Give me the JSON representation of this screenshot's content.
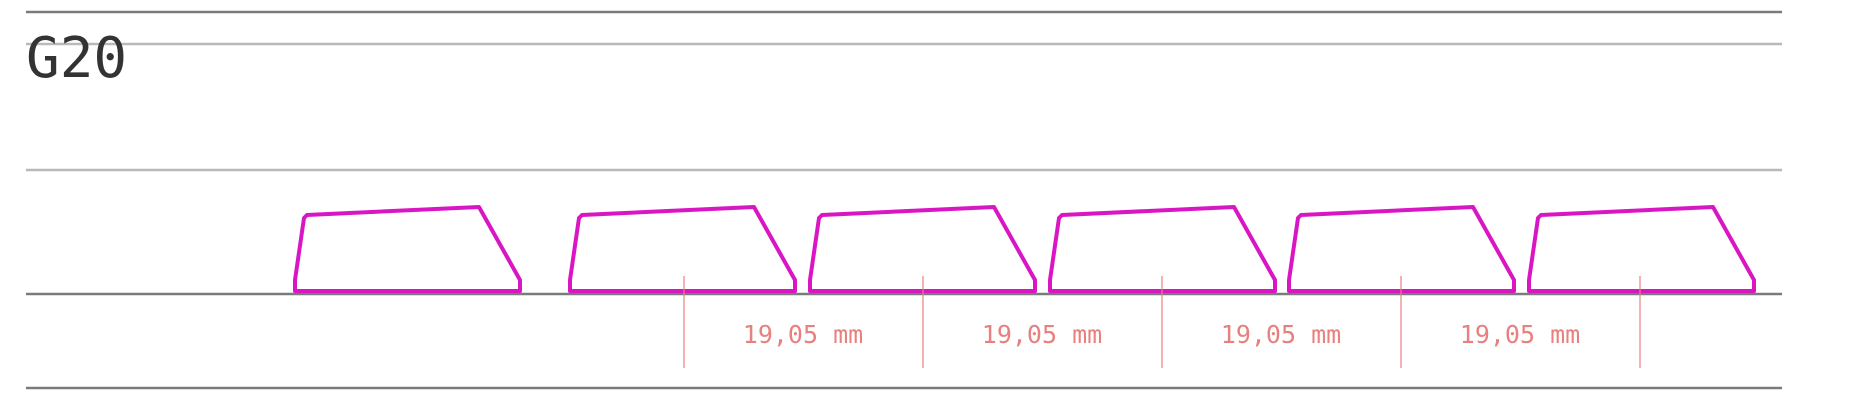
{
  "title": "G20",
  "colors": {
    "keycap_outline": "#d916c4",
    "dimension": "#e8807f",
    "line_dark": "#7a7a7a",
    "line_light": "#b9b9b9",
    "title": "#333333"
  },
  "keycap_count": 6,
  "dimensions": [
    {
      "label": "19,05 mm"
    },
    {
      "label": "19,05 mm"
    },
    {
      "label": "19,05 mm"
    },
    {
      "label": "19,05 mm"
    }
  ]
}
